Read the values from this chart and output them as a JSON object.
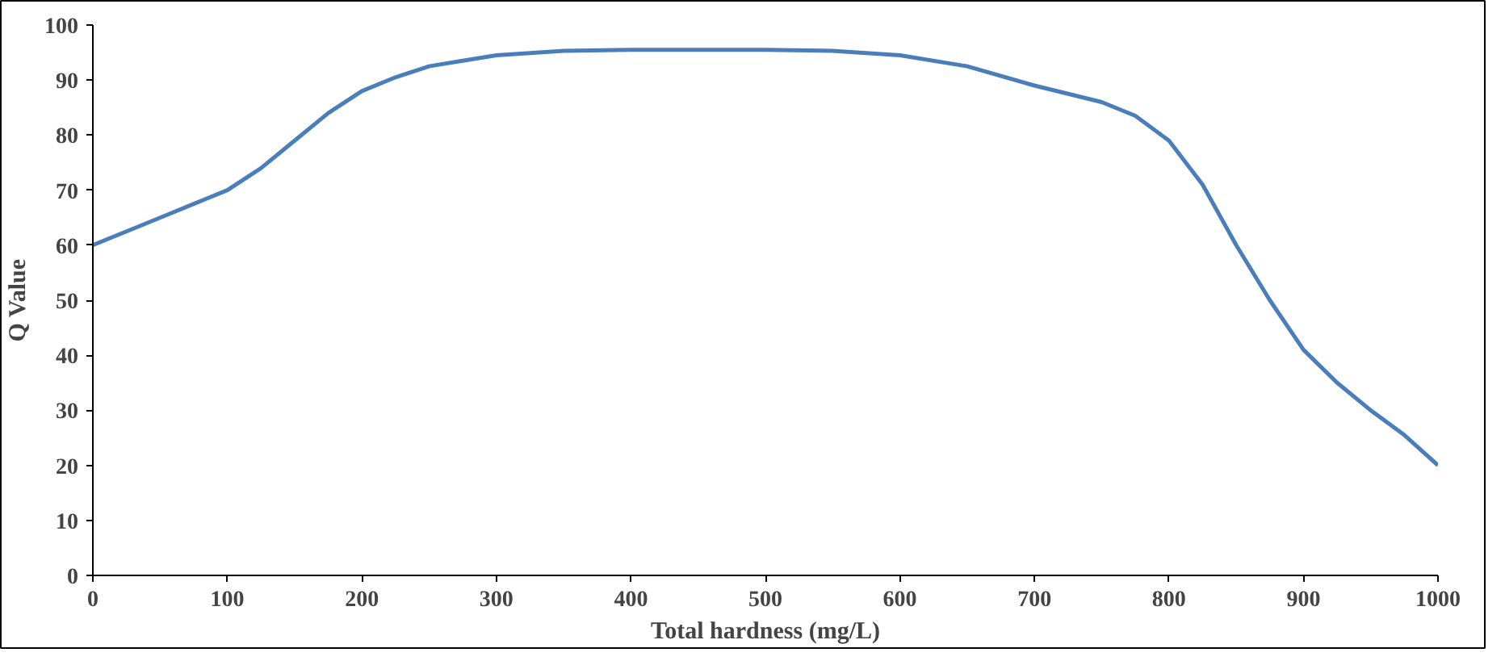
{
  "chart_data": {
    "type": "line",
    "xlabel": "Total hardness (mg/L)",
    "ylabel": "Q Value",
    "x": [
      0,
      25,
      50,
      75,
      100,
      125,
      150,
      175,
      200,
      225,
      250,
      275,
      300,
      350,
      400,
      450,
      500,
      550,
      600,
      650,
      700,
      750,
      775,
      800,
      825,
      850,
      875,
      900,
      925,
      950,
      975,
      1000
    ],
    "series": [
      {
        "color": "#4a7ebb",
        "values": [
          60,
          62.5,
          65,
          67.5,
          70,
          74,
          79,
          84,
          88,
          90.5,
          92.5,
          93.5,
          94.5,
          95.3,
          95.5,
          95.5,
          95.5,
          95.3,
          94.5,
          92.5,
          89,
          86,
          83.5,
          79,
          71,
          60,
          50,
          41,
          35,
          30,
          25.5,
          20
        ]
      }
    ],
    "xlim": [
      0,
      1000
    ],
    "xticks": [
      0,
      100,
      200,
      300,
      400,
      500,
      600,
      700,
      800,
      900,
      1000
    ],
    "ylim": [
      0,
      100
    ],
    "yticks": [
      0,
      10,
      20,
      30,
      40,
      50,
      60,
      70,
      80,
      90,
      100
    ],
    "grid": false,
    "marker": "none",
    "line_style": "solid"
  }
}
